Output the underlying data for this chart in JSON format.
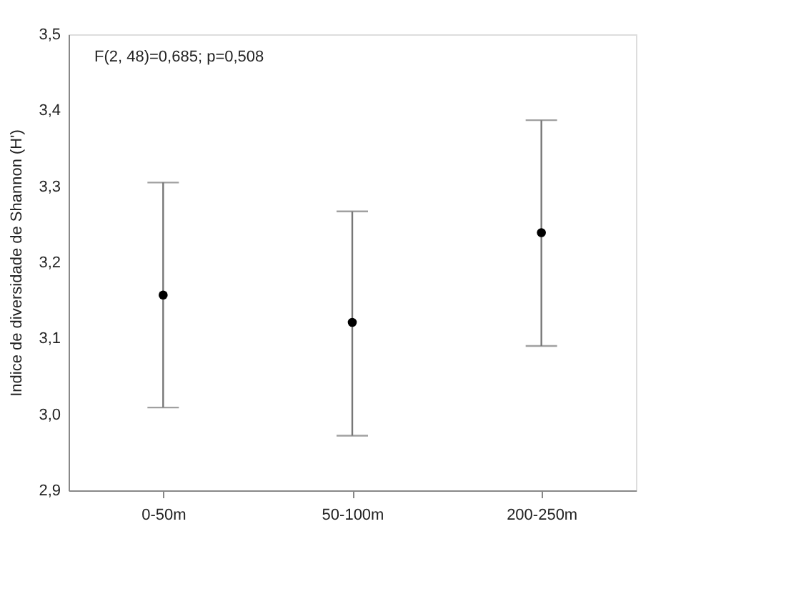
{
  "chart_data": {
    "type": "scatter",
    "ylabel": "Indice de diversidade de Shannon (H')",
    "categories": [
      "0-50m",
      "50-100m",
      "200-250m"
    ],
    "values": [
      3.157,
      3.121,
      3.239
    ],
    "errors": [
      [
        3.009,
        3.305
      ],
      [
        2.972,
        3.267
      ],
      [
        3.09,
        3.387
      ]
    ],
    "color": "#000000",
    "marker": "circle",
    "ylim": [
      2.9,
      3.5
    ],
    "yticks": [
      {
        "value": 2.9,
        "label": "2,9"
      },
      {
        "value": 3.0,
        "label": "3,0"
      },
      {
        "value": 3.1,
        "label": "3,1"
      },
      {
        "value": 3.2,
        "label": "3,2"
      },
      {
        "value": 3.3,
        "label": "3,3"
      },
      {
        "value": 3.4,
        "label": "3,4"
      },
      {
        "value": 3.5,
        "label": "3,5"
      }
    ],
    "annotations": [
      "F(2, 48)=0,685; p=0,508"
    ],
    "grid": false
  }
}
